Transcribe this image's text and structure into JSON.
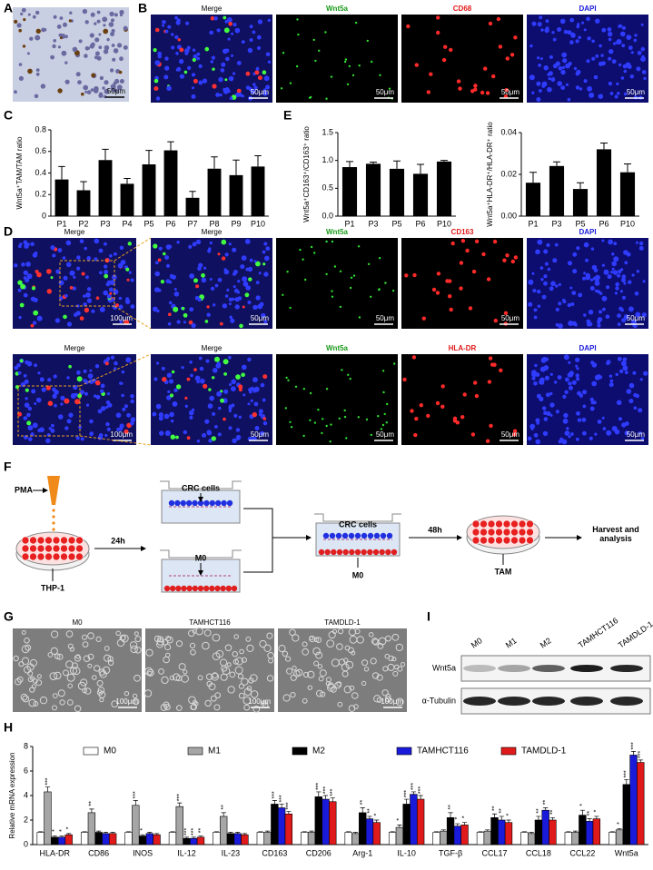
{
  "panel_labels": [
    "A",
    "B",
    "C",
    "D",
    "E",
    "F",
    "G",
    "H",
    "I"
  ],
  "panel_a": {
    "scale": "50μm"
  },
  "panel_b": {
    "titles": [
      "Merge",
      "Wnt5a",
      "CD68",
      "DAPI"
    ],
    "scales": [
      "50μm",
      "50μm",
      "50μm",
      "50μm"
    ]
  },
  "panel_d": {
    "rows": [
      {
        "titles": [
          "Merge",
          "Merge",
          "Wnt5a",
          "CD163",
          "DAPI"
        ],
        "scales": [
          "100μm",
          "50μm",
          "50μm",
          "50μm",
          "50μm"
        ]
      },
      {
        "titles": [
          "Merge",
          "Merge",
          "Wnt5a",
          "HLA-DR",
          "DAPI"
        ],
        "scales": [
          "100μm",
          "50μm",
          "50μm",
          "50μm",
          "50μm"
        ]
      }
    ]
  },
  "panel_f": {
    "pma": "PMA",
    "thp1": "THP-1",
    "step1": "24h",
    "crc_top": "CRC cells",
    "m0_bottom": "M0",
    "crc_mix": "CRC cells",
    "m0_mix": "M0",
    "step2": "48h",
    "tam": "TAM",
    "harvest": "Harvest and analysis"
  },
  "panel_g": {
    "titles": [
      "M0",
      "TAMHCT116",
      "TAMDLD-1"
    ],
    "scales": [
      "100μm",
      "100μm",
      "100μm"
    ]
  },
  "panel_i": {
    "lanes": [
      "M0",
      "M1",
      "M2",
      "TAMHCT116",
      "TAMDLD-1"
    ],
    "rows": [
      "Wnt5a",
      "α-Tubulin"
    ]
  },
  "chart_data": [
    {
      "type": "bar",
      "ylabel": "Wnt5a⁺TAM/TAM ratio",
      "color": "#000000",
      "categories": [
        "P1",
        "P2",
        "P3",
        "P4",
        "P5",
        "P6",
        "P7",
        "P8",
        "P9",
        "P10"
      ],
      "values": [
        0.34,
        0.24,
        0.52,
        0.3,
        0.48,
        0.61,
        0.17,
        0.44,
        0.38,
        0.46
      ],
      "errors": [
        0.12,
        0.08,
        0.1,
        0.05,
        0.13,
        0.08,
        0.06,
        0.11,
        0.14,
        0.1
      ],
      "ylim": [
        0,
        0.8
      ],
      "yticks": [
        0,
        0.2,
        0.4,
        0.6,
        0.8
      ]
    },
    {
      "type": "bar",
      "ylabel": "Wnt5a⁺CD163⁺/CD163⁺ ratio",
      "color": "#000000",
      "categories": [
        "P1",
        "P3",
        "P5",
        "P6",
        "P10"
      ],
      "values": [
        0.88,
        0.94,
        0.85,
        0.76,
        0.98
      ],
      "errors": [
        0.1,
        0.03,
        0.14,
        0.17,
        0.02
      ],
      "ylim": [
        0,
        1.5
      ],
      "yticks": [
        {
          "value": 0,
          "label": "0.0"
        },
        0.5,
        {
          "value": 1,
          "label": "1.0"
        },
        1.5
      ]
    },
    {
      "type": "bar",
      "ylabel": "Wnt5a⁺HLA-DR⁺/HLA-DR⁺ ratio",
      "color": "#000000",
      "categories": [
        "P1",
        "P3",
        "P5",
        "P6",
        "P10"
      ],
      "values": [
        0.016,
        0.024,
        0.013,
        0.032,
        0.021
      ],
      "errors": [
        0.005,
        0.002,
        0.003,
        0.003,
        0.004
      ],
      "ylim": [
        0,
        0.04
      ],
      "yticks": [
        {
          "value": 0,
          "label": "0.00"
        },
        0.02,
        0.04
      ]
    },
    {
      "type": "grouped-bar",
      "ylabel": "Relative mRNA expression",
      "categories": [
        "HLA-DR",
        "CD86",
        "INOS",
        "IL-12",
        "IL-23",
        "CD163",
        "CD206",
        "Arg-1",
        "IL-10",
        "TGF-β",
        "CCL17",
        "CCL18",
        "CCL22",
        "Wnt5a"
      ],
      "ylim": [
        0,
        8
      ],
      "yticks": [
        0,
        2,
        4,
        6,
        8
      ],
      "series": [
        {
          "name": "M0",
          "color": "#ffffff",
          "values": [
            1,
            1,
            1,
            1,
            1,
            1,
            1,
            1,
            1,
            1,
            1,
            1,
            1,
            1
          ],
          "errors": [
            0.05,
            0.05,
            0.05,
            0.05,
            0.05,
            0.05,
            0.05,
            0.05,
            0.05,
            0.05,
            0.05,
            0.05,
            0.05,
            0.05
          ],
          "annotations": [
            null,
            null,
            null,
            null,
            null,
            null,
            null,
            null,
            null,
            null,
            null,
            null,
            null,
            null
          ]
        },
        {
          "name": "M1",
          "color": "#a6a6a6",
          "values": [
            4.3,
            2.6,
            3.2,
            3.1,
            2.3,
            1.0,
            1.0,
            0.9,
            1.4,
            1.1,
            1.1,
            0.9,
            1.0,
            1.2
          ],
          "errors": [
            0.4,
            0.3,
            0.4,
            0.3,
            0.3,
            0.1,
            0.1,
            0.1,
            0.2,
            0.1,
            0.1,
            0.1,
            0.1,
            0.1
          ],
          "annotations": [
            "***",
            "**",
            "***",
            "***",
            "**",
            null,
            null,
            null,
            "*",
            null,
            null,
            null,
            null,
            "*"
          ]
        },
        {
          "name": "M2",
          "color": "#000000",
          "values": [
            0.6,
            1.0,
            0.7,
            0.5,
            0.9,
            3.3,
            3.9,
            2.6,
            3.3,
            2.2,
            2.2,
            2.0,
            2.4,
            4.9
          ],
          "errors": [
            0.1,
            0.1,
            0.1,
            0.1,
            0.1,
            0.3,
            0.4,
            0.4,
            0.4,
            0.4,
            0.3,
            0.3,
            0.4,
            0.4
          ],
          "annotations": [
            "*",
            null,
            "*",
            "***",
            null,
            "***",
            "***",
            "**",
            "***",
            "**",
            "**",
            "**",
            "*",
            "***"
          ]
        },
        {
          "name": "TAMHCT116",
          "color": "#1a1adb",
          "values": [
            0.6,
            0.9,
            0.9,
            0.5,
            0.9,
            3.0,
            3.7,
            2.1,
            4.1,
            1.5,
            2.0,
            2.8,
            1.9,
            7.3
          ],
          "errors": [
            0.1,
            0.1,
            0.1,
            0.1,
            0.1,
            0.3,
            0.3,
            0.2,
            0.2,
            0.2,
            0.3,
            0.2,
            0.2,
            0.3
          ],
          "annotations": [
            "*",
            null,
            null,
            "***",
            null,
            "***",
            "***",
            "**",
            "***",
            "*",
            "**",
            "**",
            "**",
            "***"
          ]
        },
        {
          "name": "TAMDLD-1",
          "color": "#e01a1a",
          "values": [
            0.8,
            0.9,
            0.8,
            0.6,
            0.8,
            2.5,
            3.5,
            1.8,
            3.7,
            1.6,
            1.8,
            2.0,
            2.1,
            6.7
          ],
          "errors": [
            0.1,
            0.1,
            0.1,
            0.1,
            0.1,
            0.2,
            0.3,
            0.2,
            0.3,
            0.2,
            0.2,
            0.2,
            0.2,
            0.2
          ],
          "annotations": [
            "*",
            null,
            null,
            "**",
            null,
            "***",
            "***",
            "*",
            "***",
            "*",
            "*",
            "**",
            "*",
            "***"
          ]
        }
      ]
    }
  ]
}
